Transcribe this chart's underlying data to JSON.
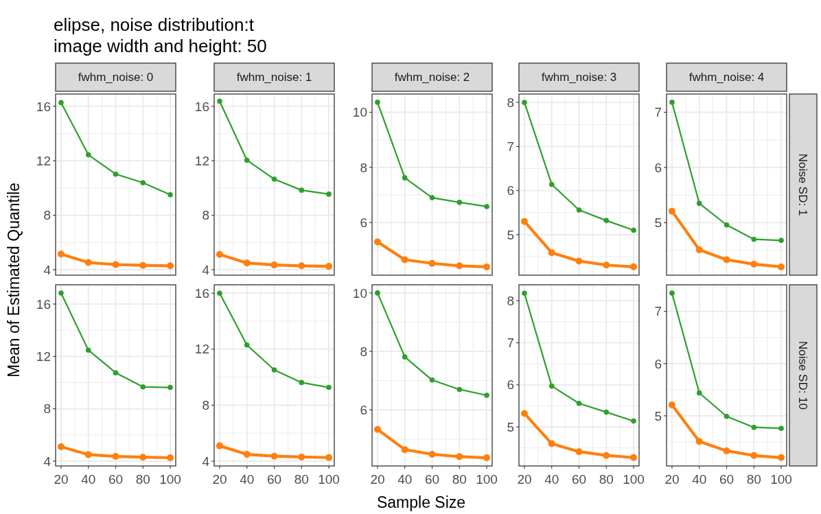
{
  "chart_data": [
    {
      "type": "line",
      "title": "elipse, noise distribution:t",
      "subtitle": "image width and height: 50",
      "ylabel": "Mean of Estimated Quantile",
      "annotations": [
        "fwhm_noise: 0"
      ],
      "x": [
        20,
        40,
        60,
        80,
        100
      ],
      "xlim": [
        16,
        104
      ],
      "xticks": [
        20,
        40,
        60,
        80,
        100
      ],
      "ylim": [
        3.6,
        16.9
      ],
      "yticks": [
        4,
        8,
        12,
        16
      ],
      "tick_labels": "y",
      "grid": true,
      "marker": "circle",
      "series": [
        {
          "color": "#2ca02c",
          "values": [
            16.27,
            12.44,
            11.02,
            10.39,
            9.51
          ]
        },
        {
          "color": "#ff7f0e",
          "values": [
            5.15,
            4.53,
            4.38,
            4.32,
            4.29
          ]
        }
      ]
    },
    {
      "type": "line",
      "annotations": [
        "fwhm_noise: 1"
      ],
      "x": [
        20,
        40,
        60,
        80,
        100
      ],
      "xlim": [
        16,
        104
      ],
      "xticks": [
        20,
        40,
        60,
        80,
        100
      ],
      "ylim": [
        3.6,
        16.9
      ],
      "yticks": [
        4,
        8,
        12,
        16
      ],
      "tick_labels": "y",
      "grid": true,
      "marker": "circle",
      "series": [
        {
          "color": "#2ca02c",
          "values": [
            16.37,
            12.04,
            10.65,
            9.84,
            9.55
          ]
        },
        {
          "color": "#ff7f0e",
          "values": [
            5.12,
            4.5,
            4.35,
            4.29,
            4.25
          ]
        }
      ]
    },
    {
      "type": "line",
      "annotations": [
        "fwhm_noise: 2"
      ],
      "x": [
        20,
        40,
        60,
        80,
        100
      ],
      "xlim": [
        16,
        104
      ],
      "xticks": [
        20,
        40,
        60,
        80,
        100
      ],
      "ylim": [
        4.09,
        10.66
      ],
      "yticks": [
        6,
        8,
        10
      ],
      "tick_labels": "y",
      "grid": true,
      "marker": "circle",
      "series": [
        {
          "color": "#2ca02c",
          "values": [
            10.36,
            7.62,
            6.9,
            6.73,
            6.58
          ]
        },
        {
          "color": "#ff7f0e",
          "values": [
            5.3,
            4.65,
            4.52,
            4.43,
            4.39
          ]
        }
      ]
    },
    {
      "type": "line",
      "annotations": [
        "fwhm_noise: 3"
      ],
      "x": [
        20,
        40,
        60,
        80,
        100
      ],
      "xlim": [
        16,
        104
      ],
      "xticks": [
        20,
        40,
        60,
        80,
        100
      ],
      "ylim": [
        4.08,
        8.19
      ],
      "yticks": [
        5,
        6,
        7,
        8
      ],
      "tick_labels": "y",
      "grid": true,
      "marker": "circle",
      "series": [
        {
          "color": "#2ca02c",
          "values": [
            8.0,
            6.14,
            5.56,
            5.32,
            5.1
          ]
        },
        {
          "color": "#ff7f0e",
          "values": [
            5.3,
            4.59,
            4.4,
            4.31,
            4.27
          ]
        }
      ]
    },
    {
      "type": "line",
      "annotations": [
        "fwhm_noise: 4",
        "Noise SD: 1"
      ],
      "x": [
        20,
        40,
        60,
        80,
        100
      ],
      "xlim": [
        16,
        104
      ],
      "xticks": [
        20,
        40,
        60,
        80,
        100
      ],
      "ylim": [
        4.05,
        7.33
      ],
      "yticks": [
        5,
        6,
        7
      ],
      "tick_labels": "y",
      "grid": true,
      "marker": "circle",
      "series": [
        {
          "color": "#2ca02c",
          "values": [
            7.18,
            5.35,
            4.96,
            4.7,
            4.68
          ]
        },
        {
          "color": "#ff7f0e",
          "values": [
            5.21,
            4.51,
            4.33,
            4.25,
            4.2
          ]
        }
      ]
    },
    {
      "type": "line",
      "x": [
        20,
        40,
        60,
        80,
        100
      ],
      "xlim": [
        16,
        104
      ],
      "xticks": [
        20,
        40,
        60,
        80,
        100
      ],
      "ylim": [
        3.63,
        17.47
      ],
      "yticks": [
        4,
        8,
        12,
        16
      ],
      "grid": true,
      "marker": "circle",
      "series": [
        {
          "color": "#2ca02c",
          "values": [
            16.84,
            12.48,
            10.75,
            9.67,
            9.63
          ]
        },
        {
          "color": "#ff7f0e",
          "values": [
            5.1,
            4.5,
            4.36,
            4.3,
            4.26
          ]
        }
      ]
    },
    {
      "type": "line",
      "x": [
        20,
        40,
        60,
        80,
        100
      ],
      "xlim": [
        16,
        104
      ],
      "xticks": [
        20,
        40,
        60,
        80,
        100
      ],
      "ylim": [
        3.66,
        16.6
      ],
      "yticks": [
        4,
        8,
        12,
        16
      ],
      "grid": true,
      "marker": "circle",
      "series": [
        {
          "color": "#2ca02c",
          "values": [
            16.0,
            12.3,
            10.52,
            9.62,
            9.27
          ]
        },
        {
          "color": "#ff7f0e",
          "values": [
            5.1,
            4.49,
            4.36,
            4.3,
            4.26
          ]
        }
      ]
    },
    {
      "type": "line",
      "xlabel": "Sample Size",
      "x": [
        20,
        40,
        60,
        80,
        100
      ],
      "xlim": [
        16,
        104
      ],
      "xticks": [
        20,
        40,
        60,
        80,
        100
      ],
      "ylim": [
        4.08,
        10.28
      ],
      "yticks": [
        6,
        8,
        10
      ],
      "grid": true,
      "marker": "circle",
      "series": [
        {
          "color": "#2ca02c",
          "values": [
            10.0,
            7.81,
            7.02,
            6.7,
            6.5
          ]
        },
        {
          "color": "#ff7f0e",
          "values": [
            5.33,
            4.64,
            4.48,
            4.4,
            4.36
          ]
        }
      ]
    },
    {
      "type": "line",
      "x": [
        20,
        40,
        60,
        80,
        100
      ],
      "xlim": [
        16,
        104
      ],
      "xticks": [
        20,
        40,
        60,
        80,
        100
      ],
      "ylim": [
        4.07,
        8.38
      ],
      "yticks": [
        5,
        6,
        7,
        8
      ],
      "grid": true,
      "marker": "circle",
      "series": [
        {
          "color": "#2ca02c",
          "values": [
            8.18,
            5.97,
            5.56,
            5.35,
            5.14
          ]
        },
        {
          "color": "#ff7f0e",
          "values": [
            5.32,
            4.6,
            4.41,
            4.32,
            4.27
          ]
        }
      ]
    },
    {
      "type": "line",
      "annotations": [
        "Noise SD: 10"
      ],
      "x": [
        20,
        40,
        60,
        80,
        100
      ],
      "xlim": [
        16,
        104
      ],
      "xticks": [
        20,
        40,
        60,
        80,
        100
      ],
      "ylim": [
        4.04,
        7.51
      ],
      "yticks": [
        5,
        6,
        7
      ],
      "grid": true,
      "marker": "circle",
      "series": [
        {
          "color": "#2ca02c",
          "values": [
            7.35,
            5.44,
            4.99,
            4.78,
            4.76
          ]
        },
        {
          "color": "#ff7f0e",
          "values": [
            5.21,
            4.51,
            4.33,
            4.24,
            4.2
          ]
        }
      ]
    }
  ]
}
